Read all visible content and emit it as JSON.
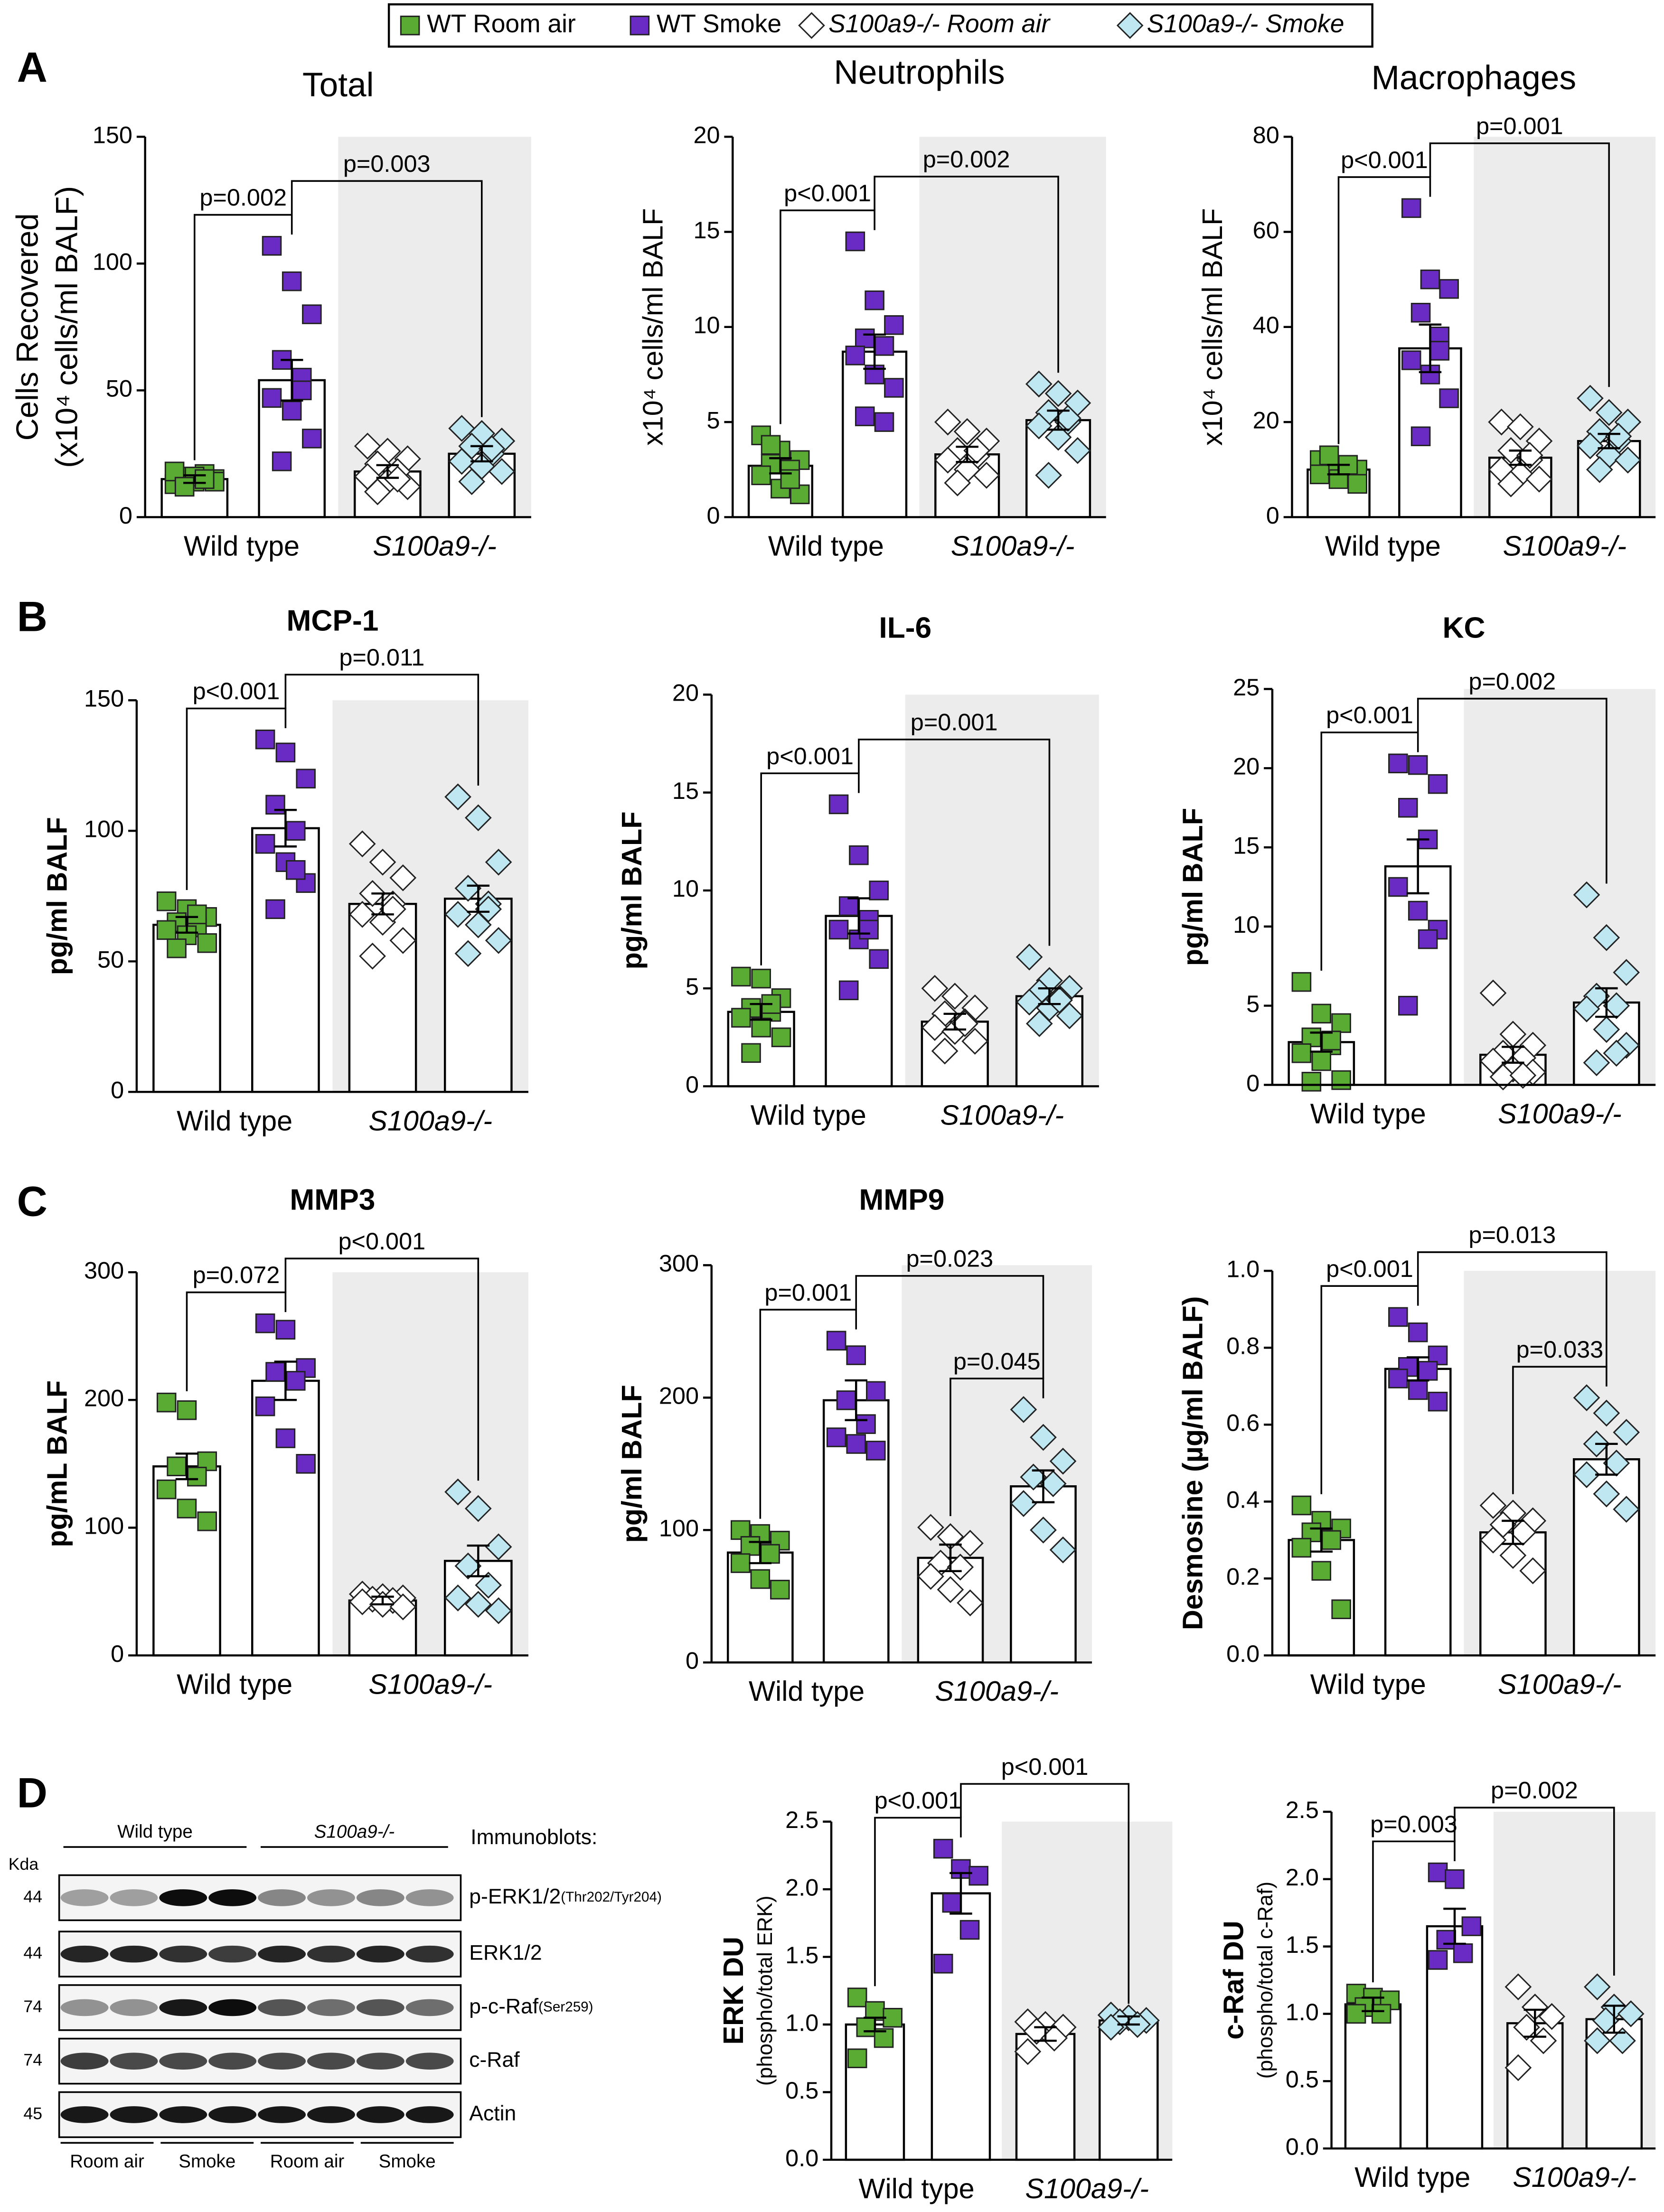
{
  "panels": [
    "A",
    "B",
    "C",
    "D"
  ],
  "legend": [
    {
      "name": "WT Room air",
      "color": "#5aab34",
      "marker": "square"
    },
    {
      "name": "WT Smoke",
      "color": "#6a2bc4",
      "marker": "square"
    },
    {
      "name": "S100a9-/- Room air",
      "color": "#ffffff",
      "marker": "diamond"
    },
    {
      "name": "S100a9-/- Smoke",
      "color": "#bfe7f2",
      "marker": "diamond"
    }
  ],
  "chart_data": [
    {
      "type": "bar",
      "title": "Total",
      "ylabel": [
        "Cells Recovered",
        "(x10⁴ cells/ml BALF)"
      ],
      "ylim": [
        0,
        150
      ],
      "yticks": [
        0,
        50,
        100,
        150
      ],
      "group_labels": [
        "Wild type",
        "S100a9-/-"
      ],
      "means": [
        15,
        54,
        18,
        25
      ],
      "errors": [
        1.5,
        8,
        2.5,
        3
      ],
      "points": [
        [
          13,
          14,
          15,
          16,
          17,
          18,
          16,
          14,
          12,
          15
        ],
        [
          107,
          93,
          80,
          62,
          55,
          47,
          42,
          31,
          22,
          50
        ],
        [
          28,
          26,
          23,
          21,
          18,
          16,
          14,
          12,
          10,
          15
        ],
        [
          35,
          33,
          30,
          28,
          25,
          22,
          20,
          18,
          14,
          27
        ]
      ],
      "comparisons": [
        {
          "between": [
            0,
            1
          ],
          "label": "p=0.002"
        },
        {
          "between": [
            1,
            3
          ],
          "label": "p=0.003"
        }
      ]
    },
    {
      "type": "bar",
      "title": "Neutrophils",
      "ylabel": [
        "x10⁴ cells/ml BALF"
      ],
      "ylim": [
        0,
        20
      ],
      "yticks": [
        0,
        5,
        10,
        15,
        20
      ],
      "group_labels": [
        "Wild type",
        "S100a9-/-"
      ],
      "means": [
        2.7,
        8.7,
        3.3,
        5.1
      ],
      "errors": [
        0.4,
        0.9,
        0.4,
        0.5
      ],
      "points": [
        [
          4.3,
          3.5,
          3,
          2.8,
          2.5,
          2.2,
          1.5,
          1.2,
          3.8,
          2
        ],
        [
          14.5,
          11.4,
          10.1,
          9.4,
          9,
          8.5,
          7.5,
          6.8,
          5.3,
          5
        ],
        [
          5,
          4.5,
          4,
          3.5,
          3.2,
          3,
          2.5,
          2.2,
          1.8,
          3.5
        ],
        [
          7,
          6.5,
          6,
          5.5,
          5,
          4.8,
          4.2,
          3.5,
          2.2,
          5.2
        ]
      ],
      "comparisons": [
        {
          "between": [
            0,
            1
          ],
          "label": "p<0.001"
        },
        {
          "between": [
            1,
            3
          ],
          "label": "p=0.002"
        }
      ]
    },
    {
      "type": "bar",
      "title": "Macrophages",
      "ylabel": [
        "x10⁴ cells/ml BALF"
      ],
      "ylim": [
        0,
        80
      ],
      "yticks": [
        0,
        20,
        40,
        60,
        80
      ],
      "group_labels": [
        "Wild type",
        "S100a9-/-"
      ],
      "means": [
        10,
        35.5,
        12.5,
        16
      ],
      "errors": [
        1,
        5,
        1.5,
        1.5
      ],
      "points": [
        [
          12,
          11,
          10,
          10,
          9,
          9,
          8,
          7,
          13,
          11
        ],
        [
          65,
          50,
          48,
          43,
          38,
          33,
          30,
          25,
          17,
          35
        ],
        [
          20,
          19,
          16,
          14,
          12,
          10,
          9,
          8,
          7,
          13
        ],
        [
          25,
          22,
          20,
          18,
          16,
          15,
          13,
          12,
          10,
          17
        ]
      ],
      "comparisons": [
        {
          "between": [
            0,
            1
          ],
          "label": "p<0.001"
        },
        {
          "between": [
            1,
            3
          ],
          "label": "p=0.001"
        }
      ]
    },
    {
      "type": "bar",
      "title": "MCP-1",
      "ylabel": [
        "pg/ml BALF"
      ],
      "ylim": [
        0,
        150
      ],
      "yticks": [
        0,
        50,
        100,
        150
      ],
      "group_labels": [
        "Wild type",
        "S100a9-/-"
      ],
      "means": [
        64,
        101,
        72,
        74
      ],
      "errors": [
        3,
        7,
        4,
        5
      ],
      "points": [
        [
          73,
          70,
          67,
          65,
          63,
          62,
          60,
          57,
          55,
          68
        ],
        [
          135,
          130,
          120,
          110,
          100,
          95,
          88,
          80,
          70,
          85
        ],
        [
          95,
          88,
          82,
          76,
          72,
          68,
          65,
          58,
          52,
          70
        ],
        [
          113,
          105,
          88,
          78,
          72,
          68,
          64,
          58,
          53,
          70
        ]
      ],
      "comparisons": [
        {
          "between": [
            0,
            1
          ],
          "label": "p<0.001"
        },
        {
          "between": [
            1,
            3
          ],
          "label": "p=0.011"
        }
      ]
    },
    {
      "type": "bar",
      "title": "IL-6",
      "ylabel": [
        "pg/ml BALF"
      ],
      "ylim": [
        0,
        20
      ],
      "yticks": [
        0,
        5,
        10,
        15,
        20
      ],
      "group_labels": [
        "Wild type",
        "S100a9-/-"
      ],
      "means": [
        3.8,
        8.7,
        3.3,
        4.6
      ],
      "errors": [
        0.4,
        0.9,
        0.4,
        0.4
      ],
      "points": [
        [
          5.6,
          5.5,
          4.5,
          4,
          3.8,
          3.5,
          3,
          2.5,
          1.7,
          4.2
        ],
        [
          14.4,
          11.8,
          10,
          9.2,
          8.5,
          8,
          7.5,
          6.5,
          4.9,
          8
        ],
        [
          5,
          4.6,
          4,
          3.7,
          3.3,
          3,
          2.8,
          2.3,
          1.8,
          3.2
        ],
        [
          6.6,
          5.4,
          5,
          4.8,
          4.5,
          4.3,
          4,
          3.6,
          3.2,
          4.4
        ]
      ],
      "comparisons": [
        {
          "between": [
            0,
            1
          ],
          "label": "p<0.001"
        },
        {
          "between": [
            1,
            3
          ],
          "label": "p=0.001"
        }
      ]
    },
    {
      "type": "bar",
      "title": "KC",
      "ylabel": [
        "pg/ml BALF"
      ],
      "ylim": [
        0,
        25
      ],
      "yticks": [
        0,
        5,
        10,
        15,
        20,
        25
      ],
      "group_labels": [
        "Wild type",
        "S100a9-/-"
      ],
      "means": [
        2.7,
        13.8,
        1.9,
        5.2
      ],
      "errors": [
        0.6,
        1.7,
        0.5,
        0.9
      ],
      "points": [
        [
          6.5,
          4.5,
          3.9,
          3,
          2.5,
          2,
          1.5,
          0.3,
          0.2,
          2.8
        ],
        [
          20.3,
          20.2,
          19,
          17.5,
          15.5,
          12.5,
          11,
          9.8,
          5,
          9.2
        ],
        [
          5.8,
          3.2,
          2.5,
          2,
          1.7,
          1.5,
          1,
          0.8,
          0.5,
          0.6
        ],
        [
          12,
          9.3,
          7.1,
          5.6,
          5,
          4.8,
          3.5,
          2.5,
          1.4,
          2
        ]
      ],
      "comparisons": [
        {
          "between": [
            0,
            1
          ],
          "label": "p<0.001"
        },
        {
          "between": [
            1,
            3
          ],
          "label": "p=0.002"
        }
      ]
    },
    {
      "type": "bar",
      "title": "MMP3",
      "ylabel": [
        "pg/mL BALF"
      ],
      "ylim": [
        0,
        300
      ],
      "yticks": [
        0,
        100,
        200,
        300
      ],
      "group_labels": [
        "Wild type",
        "S100a9-/-"
      ],
      "means": [
        148,
        215,
        43,
        74
      ],
      "errors": [
        10,
        15,
        3,
        12
      ],
      "points": [
        [
          198,
          192,
          152,
          148,
          140,
          130,
          115,
          105
        ],
        [
          260,
          255,
          225,
          222,
          215,
          195,
          170,
          150
        ],
        [
          48,
          46,
          45,
          44,
          43,
          42,
          40,
          38
        ],
        [
          128,
          115,
          85,
          70,
          55,
          45,
          40,
          35
        ]
      ],
      "comparisons": [
        {
          "between": [
            0,
            1
          ],
          "label": "p=0.072"
        },
        {
          "between": [
            1,
            3
          ],
          "label": "p<0.001"
        }
      ]
    },
    {
      "type": "bar",
      "title": "MMP9",
      "ylabel": [
        "pg/ml BALF"
      ],
      "ylim": [
        0,
        300
      ],
      "yticks": [
        0,
        100,
        200,
        300
      ],
      "group_labels": [
        "Wild type",
        "S100a9-/-"
      ],
      "means": [
        83,
        198,
        79,
        133
      ],
      "errors": [
        8,
        15,
        10,
        12
      ],
      "points": [
        [
          100,
          97,
          92,
          88,
          82,
          75,
          63,
          55
        ],
        [
          243,
          232,
          205,
          198,
          180,
          170,
          165,
          160
        ],
        [
          102,
          95,
          90,
          75,
          72,
          65,
          55,
          45
        ],
        [
          191,
          170,
          152,
          140,
          135,
          120,
          100,
          85
        ]
      ],
      "comparisons": [
        {
          "between": [
            0,
            1
          ],
          "label": "p=0.001"
        },
        {
          "between": [
            2,
            3
          ],
          "label": "p=0.045"
        },
        {
          "between": [
            1,
            3
          ],
          "label": "p=0.023"
        }
      ]
    },
    {
      "type": "bar",
      "ylabel": [
        "Desmosine (µg/ml BALF)"
      ],
      "ylim": [
        0,
        1
      ],
      "yticks": [
        {
          "value": 0,
          "label": "0.0"
        },
        0.2,
        0.4,
        0.6,
        0.8,
        {
          "value": 1,
          "label": "1.0"
        }
      ],
      "group_labels": [
        "Wild type",
        "S100a9-/-"
      ],
      "means": [
        0.3,
        0.745,
        0.32,
        0.51
      ],
      "errors": [
        0.03,
        0.03,
        0.03,
        0.04
      ],
      "points": [
        [
          0.39,
          0.35,
          0.33,
          0.32,
          0.3,
          0.28,
          0.22,
          0.12
        ],
        [
          0.88,
          0.84,
          0.78,
          0.75,
          0.74,
          0.72,
          0.69,
          0.66
        ],
        [
          0.39,
          0.37,
          0.35,
          0.34,
          0.32,
          0.3,
          0.26,
          0.22
        ],
        [
          0.67,
          0.63,
          0.58,
          0.55,
          0.5,
          0.47,
          0.42,
          0.38
        ]
      ],
      "comparisons": [
        {
          "between": [
            0,
            1
          ],
          "label": "p<0.001"
        },
        {
          "between": [
            2,
            3
          ],
          "label": "p=0.033"
        },
        {
          "between": [
            1,
            3
          ],
          "label": "p=0.013"
        }
      ]
    },
    {
      "type": "bar",
      "ylabel": [
        "ERK DU",
        "(phospho/total ERK)"
      ],
      "ylim": [
        0,
        2.5
      ],
      "yticks": [
        {
          "value": 0,
          "label": "0.0"
        },
        0.5,
        {
          "value": 1,
          "label": "1.0"
        },
        1.5,
        {
          "value": 2,
          "label": "2.0"
        },
        2.5
      ],
      "group_labels": [
        "Wild type",
        "S100a9-/-"
      ],
      "means": [
        1.0,
        1.97,
        0.93,
        1.03
      ],
      "errors": [
        0.05,
        0.15,
        0.05,
        0.03
      ],
      "points": [
        [
          1.2,
          1.1,
          1.05,
          0.98,
          0.9,
          0.75
        ],
        [
          2.3,
          2.15,
          2.1,
          1.9,
          1.7,
          1.45
        ],
        [
          1.02,
          1,
          0.98,
          0.95,
          0.9,
          0.8
        ],
        [
          1.07,
          1.05,
          1.03,
          1.02,
          1.0,
          0.98
        ]
      ],
      "comparisons": [
        {
          "between": [
            0,
            1
          ],
          "label": "p<0.001"
        },
        {
          "between": [
            1,
            3
          ],
          "label": "p<0.001"
        }
      ]
    },
    {
      "type": "bar",
      "ylabel": [
        "c-Raf DU",
        "(phospho/total c-Raf)"
      ],
      "ylim": [
        0,
        2.5
      ],
      "yticks": [
        {
          "value": 0,
          "label": "0.0"
        },
        0.5,
        {
          "value": 1,
          "label": "1.0"
        },
        1.5,
        {
          "value": 2,
          "label": "2.0"
        },
        2.5
      ],
      "group_labels": [
        "Wild type",
        "S100a9-/-"
      ],
      "means": [
        1.07,
        1.65,
        0.93,
        0.96
      ],
      "errors": [
        0.05,
        0.13,
        0.1,
        0.1
      ],
      "points": [
        [
          1.15,
          1.12,
          1.1,
          1.05,
          1.0,
          1.0
        ],
        [
          2.05,
          2.0,
          1.65,
          1.55,
          1.45,
          1.4
        ],
        [
          1.2,
          1.05,
          0.98,
          0.9,
          0.8,
          0.6
        ],
        [
          1.2,
          1.05,
          1.0,
          0.95,
          0.8,
          0.8
        ]
      ],
      "comparisons": [
        {
          "between": [
            0,
            1
          ],
          "label": "p=0.003"
        },
        {
          "between": [
            1,
            3
          ],
          "label": "p=0.002"
        }
      ]
    }
  ],
  "blot": {
    "unit_label": "Kda",
    "groups": [
      "Wild type",
      "S100a9-/-"
    ],
    "header": "Immunoblots:",
    "rows": [
      {
        "kda": 44,
        "name": "p-ERK1/2",
        "detail": "(Thr202/Tyr204)"
      },
      {
        "kda": 44,
        "name": "ERK1/2"
      },
      {
        "kda": 74,
        "name": "p-c-Raf",
        "detail": "(Ser259)"
      },
      {
        "kda": 74,
        "name": "c-Raf"
      },
      {
        "kda": 45,
        "name": "Actin"
      }
    ],
    "lanes": [
      "Room air",
      "Smoke",
      "Room air",
      "Smoke"
    ]
  }
}
